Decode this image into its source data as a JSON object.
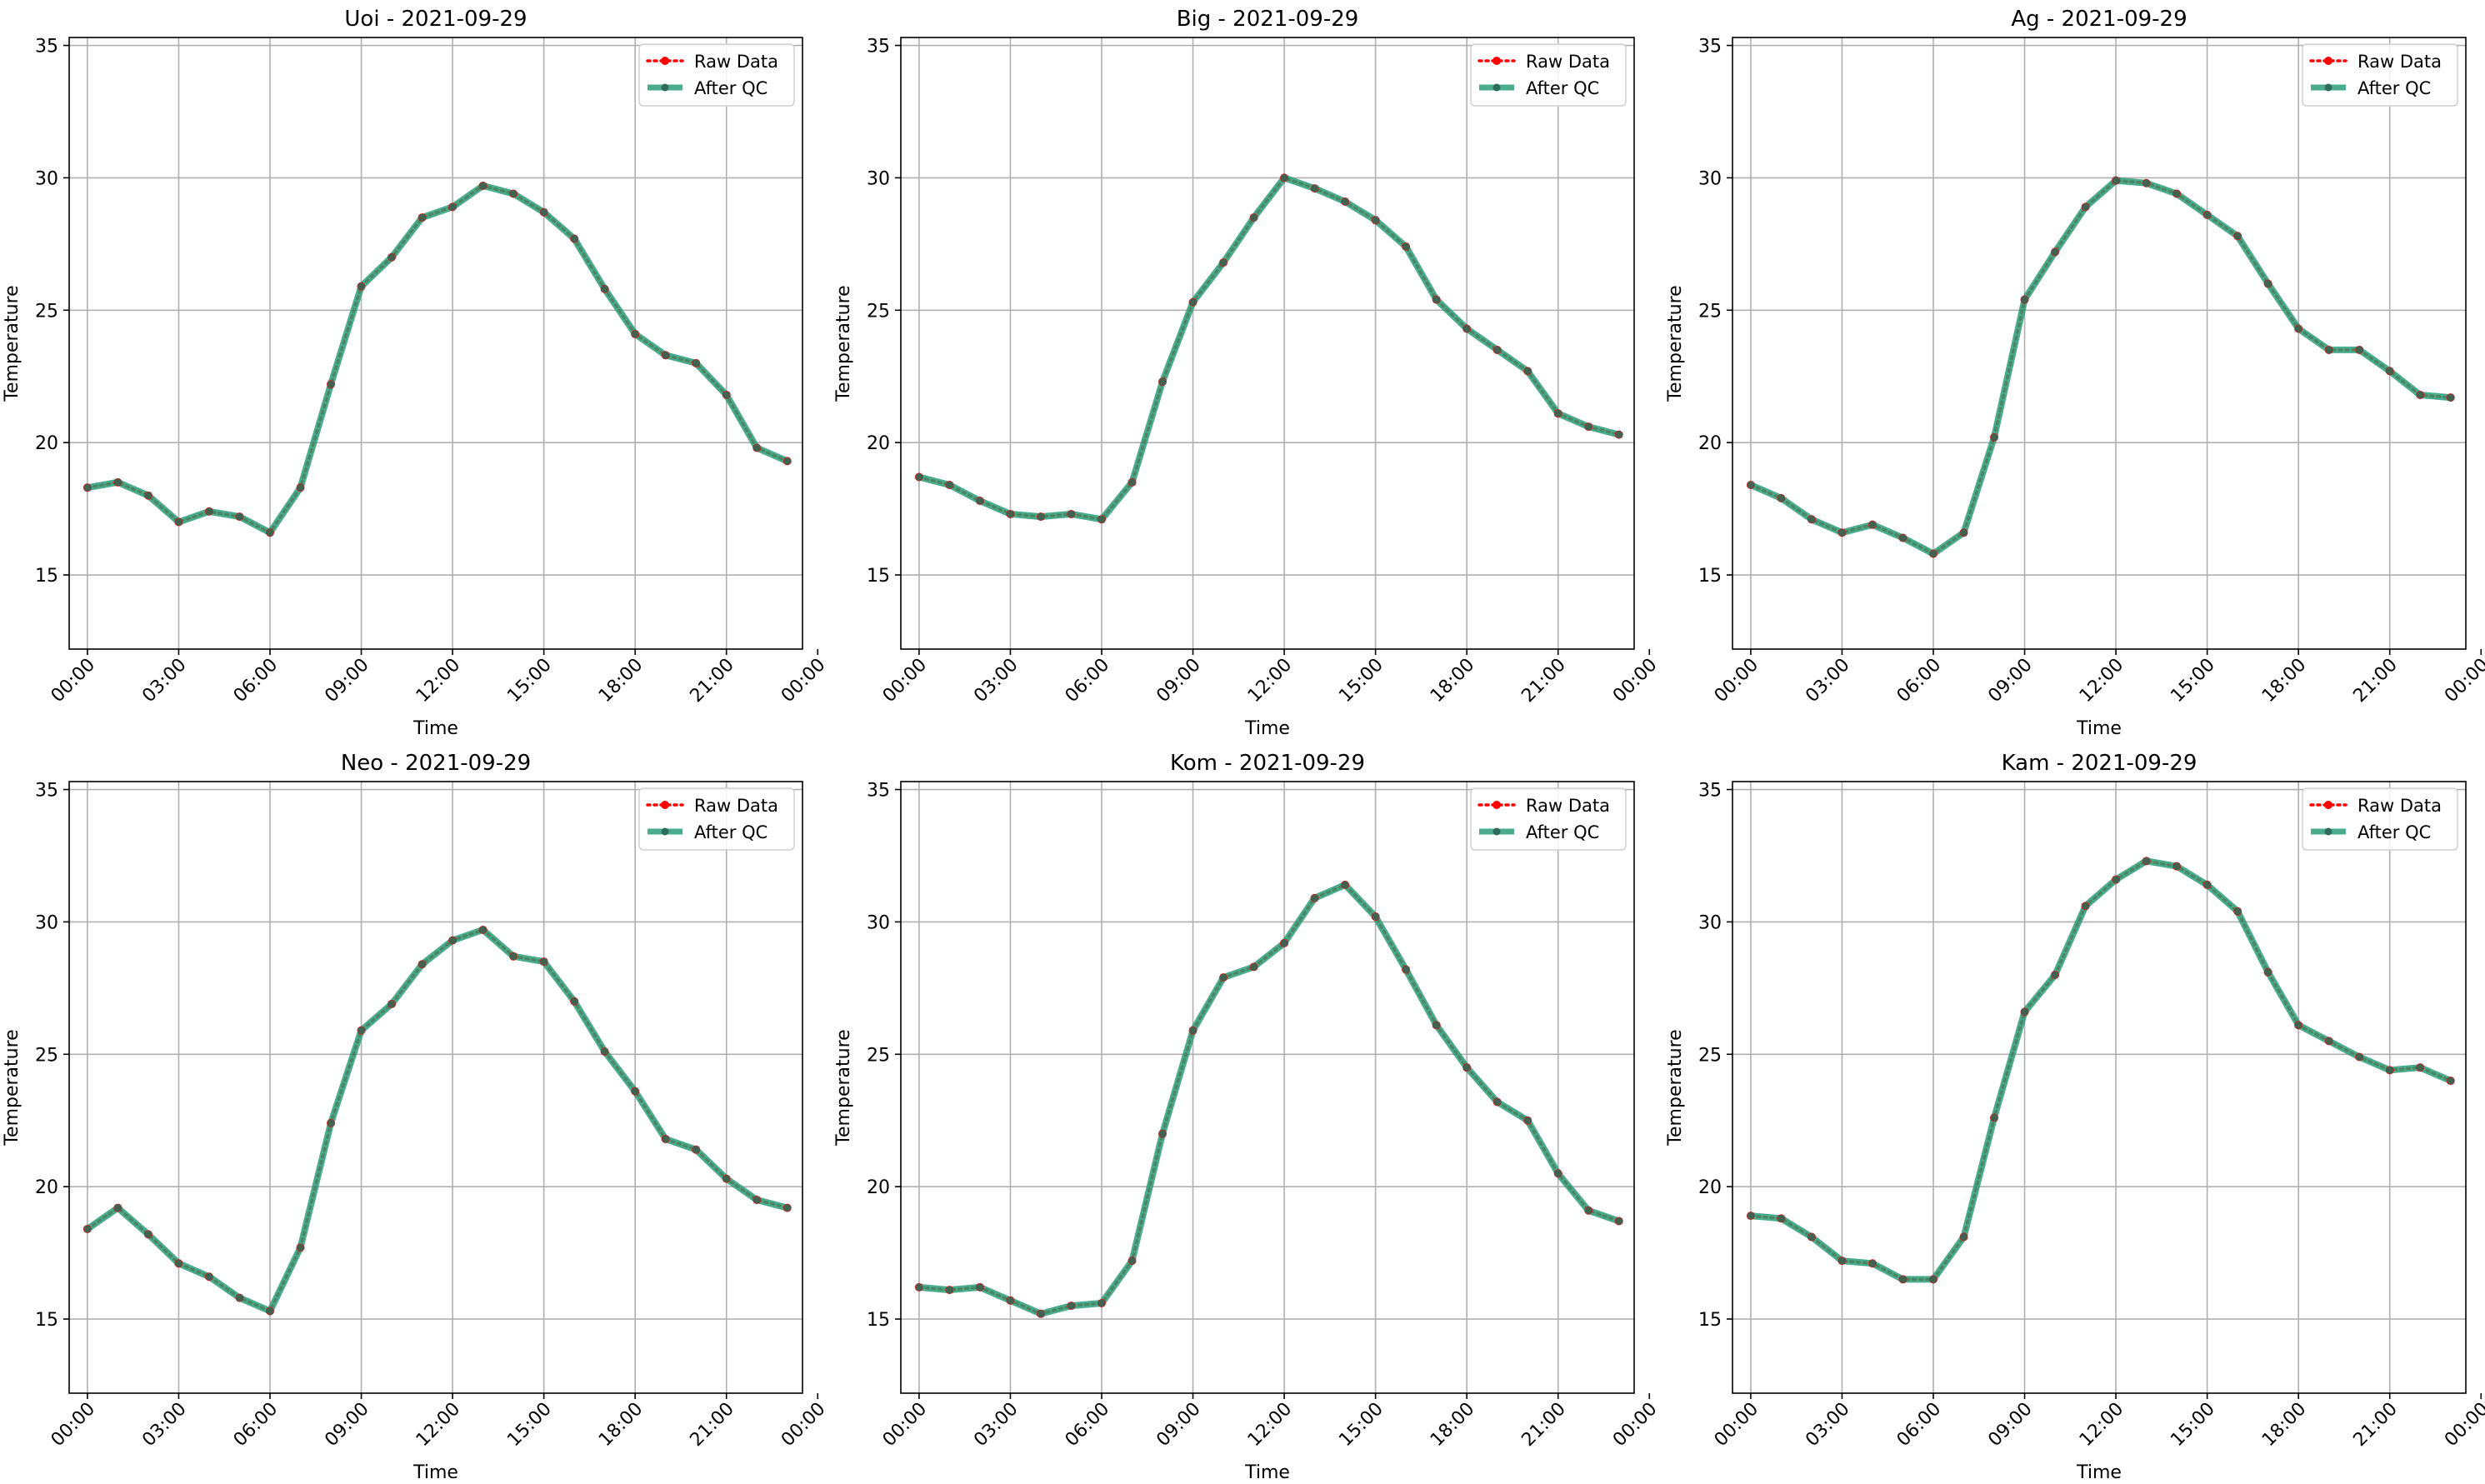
{
  "chart_data": [
    {
      "type": "line",
      "title": "Uoi - 2021-09-29",
      "xlabel": "Time",
      "ylabel": "Temperature",
      "ylim": [
        12.2,
        35.3
      ],
      "xlim": [
        -0.6,
        23.5
      ],
      "yticks": [
        15,
        20,
        25,
        30,
        35
      ],
      "xticks": [
        0,
        3,
        6,
        9,
        12,
        15,
        18,
        21,
        24
      ],
      "xtick_labels": [
        "00:00",
        "03:00",
        "06:00",
        "09:00",
        "12:00",
        "15:00",
        "18:00",
        "21:00",
        "00:00"
      ],
      "grid": true,
      "legend_position": "top-right",
      "x": [
        0,
        1,
        2,
        3,
        4,
        5,
        6,
        7,
        8,
        9,
        10,
        11,
        12,
        13,
        14,
        15,
        16,
        17,
        18,
        19,
        20,
        21,
        22,
        23
      ],
      "series": [
        {
          "name": "Raw Data",
          "color": "#ff0000",
          "style": "dotted",
          "values": [
            18.3,
            18.5,
            18.0,
            17.0,
            17.4,
            17.2,
            16.6,
            18.3,
            22.2,
            25.9,
            27.0,
            28.5,
            28.9,
            29.7,
            29.4,
            28.7,
            27.7,
            25.8,
            24.1,
            23.3,
            23.0,
            21.8,
            19.8,
            19.3
          ]
        },
        {
          "name": "After QC",
          "color": "#2a9d78",
          "style": "solid",
          "values": [
            18.3,
            18.5,
            18.0,
            17.0,
            17.4,
            17.2,
            16.6,
            18.3,
            22.2,
            25.9,
            27.0,
            28.5,
            28.9,
            29.7,
            29.4,
            28.7,
            27.7,
            25.8,
            24.1,
            23.3,
            23.0,
            21.8,
            19.8,
            19.3
          ]
        }
      ]
    },
    {
      "type": "line",
      "title": "Big - 2021-09-29",
      "xlabel": "Time",
      "ylabel": "Temperature",
      "ylim": [
        12.2,
        35.3
      ],
      "xlim": [
        -0.6,
        23.5
      ],
      "yticks": [
        15,
        20,
        25,
        30,
        35
      ],
      "xticks": [
        0,
        3,
        6,
        9,
        12,
        15,
        18,
        21,
        24
      ],
      "xtick_labels": [
        "00:00",
        "03:00",
        "06:00",
        "09:00",
        "12:00",
        "15:00",
        "18:00",
        "21:00",
        "00:00"
      ],
      "grid": true,
      "legend_position": "top-right",
      "x": [
        0,
        1,
        2,
        3,
        4,
        5,
        6,
        7,
        8,
        9,
        10,
        11,
        12,
        13,
        14,
        15,
        16,
        17,
        18,
        19,
        20,
        21,
        22,
        23
      ],
      "series": [
        {
          "name": "Raw Data",
          "color": "#ff0000",
          "style": "dotted",
          "values": [
            18.7,
            18.4,
            17.8,
            17.3,
            17.2,
            17.3,
            17.1,
            18.5,
            22.3,
            25.3,
            26.8,
            28.5,
            30.0,
            29.6,
            29.1,
            28.4,
            27.4,
            25.4,
            24.3,
            23.5,
            22.7,
            21.1,
            20.6,
            20.3
          ]
        },
        {
          "name": "After QC",
          "color": "#2a9d78",
          "style": "solid",
          "values": [
            18.7,
            18.4,
            17.8,
            17.3,
            17.2,
            17.3,
            17.1,
            18.5,
            22.3,
            25.3,
            26.8,
            28.5,
            30.0,
            29.6,
            29.1,
            28.4,
            27.4,
            25.4,
            24.3,
            23.5,
            22.7,
            21.1,
            20.6,
            20.3
          ]
        }
      ]
    },
    {
      "type": "line",
      "title": "Ag - 2021-09-29",
      "xlabel": "Time",
      "ylabel": "Temperature",
      "ylim": [
        12.2,
        35.3
      ],
      "xlim": [
        -0.6,
        23.5
      ],
      "yticks": [
        15,
        20,
        25,
        30,
        35
      ],
      "xticks": [
        0,
        3,
        6,
        9,
        12,
        15,
        18,
        21,
        24
      ],
      "xtick_labels": [
        "00:00",
        "03:00",
        "06:00",
        "09:00",
        "12:00",
        "15:00",
        "18:00",
        "21:00",
        "00:00"
      ],
      "grid": true,
      "legend_position": "top-right",
      "x": [
        0,
        1,
        2,
        3,
        4,
        5,
        6,
        7,
        8,
        9,
        10,
        11,
        12,
        13,
        14,
        15,
        16,
        17,
        18,
        19,
        20,
        21,
        22,
        23
      ],
      "series": [
        {
          "name": "Raw Data",
          "color": "#ff0000",
          "style": "dotted",
          "values": [
            18.4,
            17.9,
            17.1,
            16.6,
            16.9,
            16.4,
            15.8,
            16.6,
            20.2,
            25.4,
            27.2,
            28.9,
            29.9,
            29.8,
            29.4,
            28.6,
            27.8,
            26.0,
            24.3,
            23.5,
            23.5,
            22.7,
            21.8,
            21.7
          ]
        },
        {
          "name": "After QC",
          "color": "#2a9d78",
          "style": "solid",
          "values": [
            18.4,
            17.9,
            17.1,
            16.6,
            16.9,
            16.4,
            15.8,
            16.6,
            20.2,
            25.4,
            27.2,
            28.9,
            29.9,
            29.8,
            29.4,
            28.6,
            27.8,
            26.0,
            24.3,
            23.5,
            23.5,
            22.7,
            21.8,
            21.7
          ]
        }
      ]
    },
    {
      "type": "line",
      "title": "Neo - 2021-09-29",
      "xlabel": "Time",
      "ylabel": "Temperature",
      "ylim": [
        12.2,
        35.3
      ],
      "xlim": [
        -0.6,
        23.5
      ],
      "yticks": [
        15,
        20,
        25,
        30,
        35
      ],
      "xticks": [
        0,
        3,
        6,
        9,
        12,
        15,
        18,
        21,
        24
      ],
      "xtick_labels": [
        "00:00",
        "03:00",
        "06:00",
        "09:00",
        "12:00",
        "15:00",
        "18:00",
        "21:00",
        "00:00"
      ],
      "grid": true,
      "legend_position": "top-right",
      "x": [
        0,
        1,
        2,
        3,
        4,
        5,
        6,
        7,
        8,
        9,
        10,
        11,
        12,
        13,
        14,
        15,
        16,
        17,
        18,
        19,
        20,
        21,
        22,
        23
      ],
      "series": [
        {
          "name": "Raw Data",
          "color": "#ff0000",
          "style": "dotted",
          "values": [
            18.4,
            19.2,
            18.2,
            17.1,
            16.6,
            15.8,
            15.3,
            17.7,
            22.4,
            25.9,
            26.9,
            28.4,
            29.3,
            29.7,
            28.7,
            28.5,
            27.0,
            25.1,
            23.6,
            21.8,
            21.4,
            20.3,
            19.5,
            19.2
          ]
        },
        {
          "name": "After QC",
          "color": "#2a9d78",
          "style": "solid",
          "values": [
            18.4,
            19.2,
            18.2,
            17.1,
            16.6,
            15.8,
            15.3,
            17.7,
            22.4,
            25.9,
            26.9,
            28.4,
            29.3,
            29.7,
            28.7,
            28.5,
            27.0,
            25.1,
            23.6,
            21.8,
            21.4,
            20.3,
            19.5,
            19.2
          ]
        }
      ]
    },
    {
      "type": "line",
      "title": "Kom - 2021-09-29",
      "xlabel": "Time",
      "ylabel": "Temperature",
      "ylim": [
        12.2,
        35.3
      ],
      "xlim": [
        -0.6,
        23.5
      ],
      "yticks": [
        15,
        20,
        25,
        30,
        35
      ],
      "xticks": [
        0,
        3,
        6,
        9,
        12,
        15,
        18,
        21,
        24
      ],
      "xtick_labels": [
        "00:00",
        "03:00",
        "06:00",
        "09:00",
        "12:00",
        "15:00",
        "18:00",
        "21:00",
        "00:00"
      ],
      "grid": true,
      "legend_position": "top-right",
      "x": [
        0,
        1,
        2,
        3,
        4,
        5,
        6,
        7,
        8,
        9,
        10,
        11,
        12,
        13,
        14,
        15,
        16,
        17,
        18,
        19,
        20,
        21,
        22,
        23
      ],
      "series": [
        {
          "name": "Raw Data",
          "color": "#ff0000",
          "style": "dotted",
          "values": [
            16.2,
            16.1,
            16.2,
            15.7,
            15.2,
            15.5,
            15.6,
            17.2,
            22.0,
            25.9,
            27.9,
            28.3,
            29.2,
            30.9,
            31.4,
            30.2,
            28.2,
            26.1,
            24.5,
            23.2,
            22.5,
            20.5,
            19.1,
            18.7
          ]
        },
        {
          "name": "After QC",
          "color": "#2a9d78",
          "style": "solid",
          "values": [
            16.2,
            16.1,
            16.2,
            15.7,
            15.2,
            15.5,
            15.6,
            17.2,
            22.0,
            25.9,
            27.9,
            28.3,
            29.2,
            30.9,
            31.4,
            30.2,
            28.2,
            26.1,
            24.5,
            23.2,
            22.5,
            20.5,
            19.1,
            18.7
          ]
        }
      ]
    },
    {
      "type": "line",
      "title": "Kam - 2021-09-29",
      "xlabel": "Time",
      "ylabel": "Temperature",
      "ylim": [
        12.2,
        35.3
      ],
      "xlim": [
        -0.6,
        23.5
      ],
      "yticks": [
        15,
        20,
        25,
        30,
        35
      ],
      "xticks": [
        0,
        3,
        6,
        9,
        12,
        15,
        18,
        21,
        24
      ],
      "xtick_labels": [
        "00:00",
        "03:00",
        "06:00",
        "09:00",
        "12:00",
        "15:00",
        "18:00",
        "21:00",
        "00:00"
      ],
      "grid": true,
      "legend_position": "top-right",
      "x": [
        0,
        1,
        2,
        3,
        4,
        5,
        6,
        7,
        8,
        9,
        10,
        11,
        12,
        13,
        14,
        15,
        16,
        17,
        18,
        19,
        20,
        21,
        22,
        23
      ],
      "series": [
        {
          "name": "Raw Data",
          "color": "#ff0000",
          "style": "dotted",
          "values": [
            18.9,
            18.8,
            18.1,
            17.2,
            17.1,
            16.5,
            16.5,
            18.1,
            22.6,
            26.6,
            28.0,
            30.6,
            31.6,
            32.3,
            32.1,
            31.4,
            30.4,
            28.1,
            26.1,
            25.5,
            24.9,
            24.4,
            24.5,
            24.0
          ]
        },
        {
          "name": "After QC",
          "color": "#2a9d78",
          "style": "solid",
          "values": [
            18.9,
            18.8,
            18.1,
            17.2,
            17.1,
            16.5,
            16.5,
            18.1,
            22.6,
            26.6,
            28.0,
            30.6,
            31.6,
            32.3,
            32.1,
            31.4,
            30.4,
            28.1,
            26.1,
            25.5,
            24.9,
            24.4,
            24.5,
            24.0
          ]
        }
      ]
    }
  ]
}
